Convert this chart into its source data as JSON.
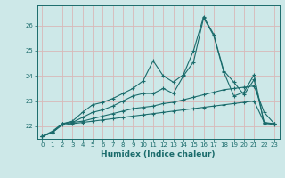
{
  "bg_color": "#cde8e8",
  "grid_color": "#d8b8b8",
  "line_color": "#1a6b6b",
  "marker": "+",
  "xlabel": "Humidex (Indice chaleur)",
  "xlim": [
    -0.5,
    23.5
  ],
  "ylim": [
    21.5,
    26.8
  ],
  "yticks": [
    22,
    23,
    24,
    25,
    26
  ],
  "xticks": [
    0,
    1,
    2,
    3,
    4,
    5,
    6,
    7,
    8,
    9,
    10,
    11,
    12,
    13,
    14,
    15,
    16,
    17,
    18,
    19,
    20,
    21,
    22,
    23
  ],
  "xtick_labels": [
    "0",
    "1",
    "2",
    "3",
    "4",
    "5",
    "6",
    "7",
    "8",
    "9",
    "10",
    "11",
    "12",
    "13",
    "14",
    "15",
    "16",
    "17",
    "18",
    "19",
    "20",
    "21",
    "22",
    "23"
  ],
  "series": [
    [
      21.6,
      21.75,
      22.1,
      22.2,
      22.55,
      22.85,
      22.95,
      23.1,
      23.3,
      23.5,
      23.8,
      24.6,
      24.0,
      23.75,
      24.05,
      25.0,
      26.35,
      25.65,
      24.2,
      23.75,
      23.25,
      23.85,
      22.15,
      22.1
    ],
    [
      21.6,
      21.8,
      22.1,
      22.15,
      22.35,
      22.55,
      22.65,
      22.8,
      23.0,
      23.2,
      23.3,
      23.3,
      23.5,
      23.3,
      24.0,
      24.55,
      26.3,
      25.6,
      24.15,
      23.2,
      23.35,
      24.05,
      22.1,
      22.1
    ],
    [
      21.6,
      21.75,
      22.1,
      22.15,
      22.2,
      22.3,
      22.4,
      22.5,
      22.6,
      22.7,
      22.75,
      22.8,
      22.9,
      22.95,
      23.05,
      23.15,
      23.25,
      23.35,
      23.45,
      23.5,
      23.55,
      23.6,
      22.55,
      22.1
    ],
    [
      21.6,
      21.75,
      22.05,
      22.1,
      22.15,
      22.2,
      22.25,
      22.3,
      22.35,
      22.4,
      22.45,
      22.5,
      22.55,
      22.6,
      22.65,
      22.7,
      22.75,
      22.8,
      22.85,
      22.9,
      22.95,
      23.0,
      22.15,
      22.05
    ]
  ],
  "title_fontsize": 7,
  "xlabel_fontsize": 6.5,
  "tick_fontsize": 5,
  "linewidth": 0.8,
  "markersize": 3,
  "markeredgewidth": 0.8
}
